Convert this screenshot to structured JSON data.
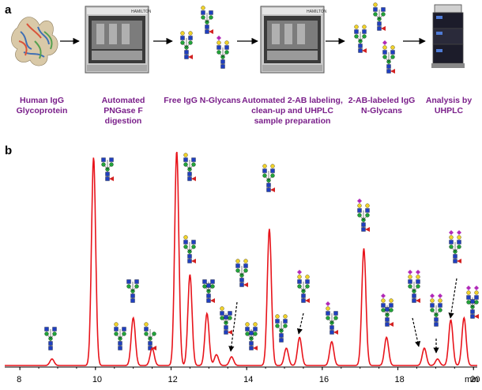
{
  "panel_a": {
    "letter": "a",
    "steps": [
      {
        "id": "protein",
        "label": "Human IgG Glycoprotein"
      },
      {
        "id": "pngase",
        "label": "Automated PNGase F digestion"
      },
      {
        "id": "free",
        "label": "Free IgG N-Glycans"
      },
      {
        "id": "labeling",
        "label": "Automated 2-AB labeling, clean-up and UHPLC sample preparation"
      },
      {
        "id": "labeled",
        "label": "2-AB-labeled IgG N-Glycans"
      },
      {
        "id": "analysis",
        "label": "Analysis by UHPLC"
      }
    ],
    "instrument_brand": "HAMILTON"
  },
  "panel_b": {
    "letter": "b",
    "chart_data": {
      "type": "line",
      "xlabel": "min",
      "xlim": [
        7.6,
        20.1
      ],
      "ticks": [
        8,
        10,
        12,
        14,
        16,
        18,
        20
      ],
      "tick_labels": [
        "8",
        "10",
        "12",
        "14",
        "16",
        "18",
        "20"
      ],
      "line_color": "#e8141b",
      "peaks": [
        {
          "t": 8.85,
          "h": 0.03
        },
        {
          "t": 9.95,
          "h": 0.96
        },
        {
          "t": 11.0,
          "h": 0.22
        },
        {
          "t": 11.5,
          "h": 0.08
        },
        {
          "t": 12.15,
          "h": 0.99
        },
        {
          "t": 12.5,
          "h": 0.42
        },
        {
          "t": 12.95,
          "h": 0.24
        },
        {
          "t": 13.2,
          "h": 0.05
        },
        {
          "t": 13.6,
          "h": 0.04
        },
        {
          "t": 14.6,
          "h": 0.63
        },
        {
          "t": 15.05,
          "h": 0.08
        },
        {
          "t": 15.4,
          "h": 0.13
        },
        {
          "t": 16.25,
          "h": 0.11
        },
        {
          "t": 17.1,
          "h": 0.54
        },
        {
          "t": 17.7,
          "h": 0.13
        },
        {
          "t": 18.7,
          "h": 0.08
        },
        {
          "t": 19.05,
          "h": 0.03
        },
        {
          "t": 19.4,
          "h": 0.21
        },
        {
          "t": 19.75,
          "h": 0.22
        }
      ]
    }
  }
}
